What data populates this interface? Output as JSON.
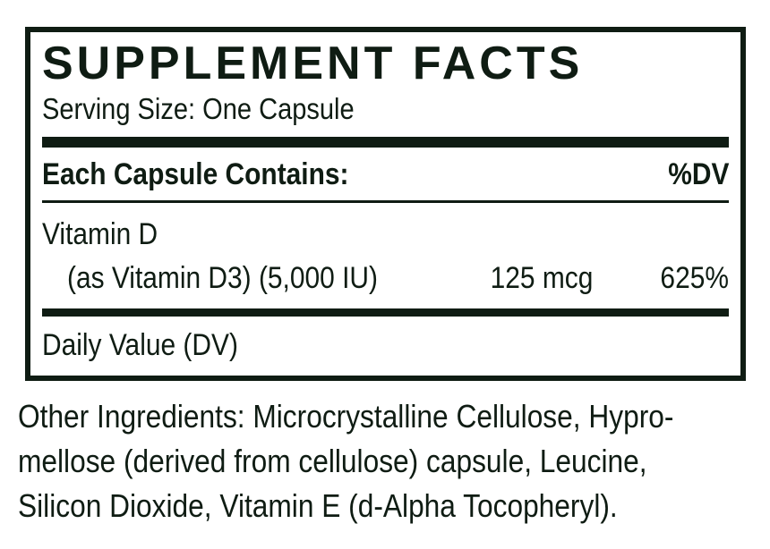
{
  "label": {
    "title": "SUPPLEMENT FACTS",
    "serving_size": "Serving Size: One Capsule",
    "header": {
      "left": "Each Capsule Contains:",
      "right": "%DV"
    },
    "rows": [
      {
        "name": "Vitamin D",
        "detail": "(as Vitamin D3) (5,000 IU)",
        "amount": "125 mcg",
        "dv": "625%"
      }
    ],
    "footnote": "Daily Value (DV)",
    "other_ingredients_lines": [
      "Other Ingredients: Microcrystalline Cellulose, Hypro-",
      "mellose (derived from cellulose) capsule, Leucine,",
      "Silicon Dioxide, Vitamin E (d-Alpha Tocopheryl)."
    ]
  },
  "colors": {
    "ink": "#0f1c13",
    "background": "#ffffff"
  }
}
